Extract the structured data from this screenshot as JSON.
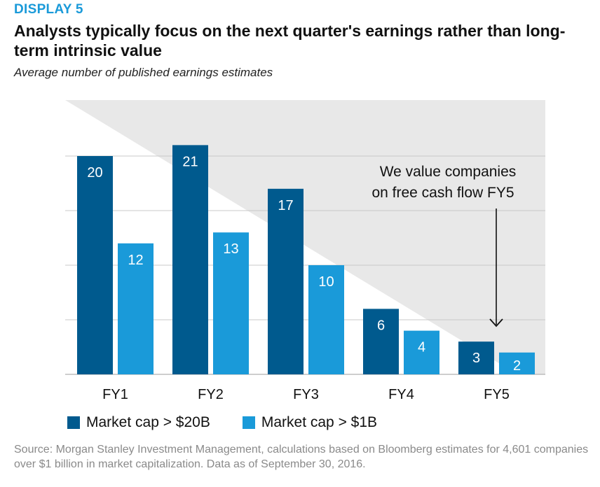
{
  "display_label": "DISPLAY 5",
  "headline": "Analysts typically focus on the next quarter's earnings rather than long-term intrinsic value",
  "subtitle": "Average number of published earnings estimates",
  "annotation": {
    "line1": "We value companies",
    "line2": "on free cash flow FY5"
  },
  "colors": {
    "series1": "#005a8e",
    "series2": "#1a9ad9",
    "grid": "#c8c8c8",
    "background_wedge": "#e8e8e8",
    "accent": "#1a9ad9"
  },
  "chart_data": {
    "type": "bar",
    "categories": [
      "FY1",
      "FY2",
      "FY3",
      "FY4",
      "FY5"
    ],
    "series": [
      {
        "name": "Market cap > $20B",
        "values": [
          20,
          21,
          17,
          6,
          3
        ]
      },
      {
        "name": "Market cap > $1B",
        "values": [
          12,
          13,
          10,
          4,
          2
        ]
      }
    ],
    "title": "Analysts typically focus on the next quarter's earnings rather than long-term intrinsic value",
    "subtitle": "Average number of published earnings estimates",
    "ylim": [
      0,
      25
    ],
    "grid": true,
    "legend": "bottom-left"
  },
  "legend": {
    "item1": "Market cap > $20B",
    "item2": "Market cap > $1B"
  },
  "source": "Source: Morgan Stanley Investment Management, calculations based on Bloomberg estimates for 4,601 companies over $1 billion in market capitalization. Data as of September 30, 2016."
}
